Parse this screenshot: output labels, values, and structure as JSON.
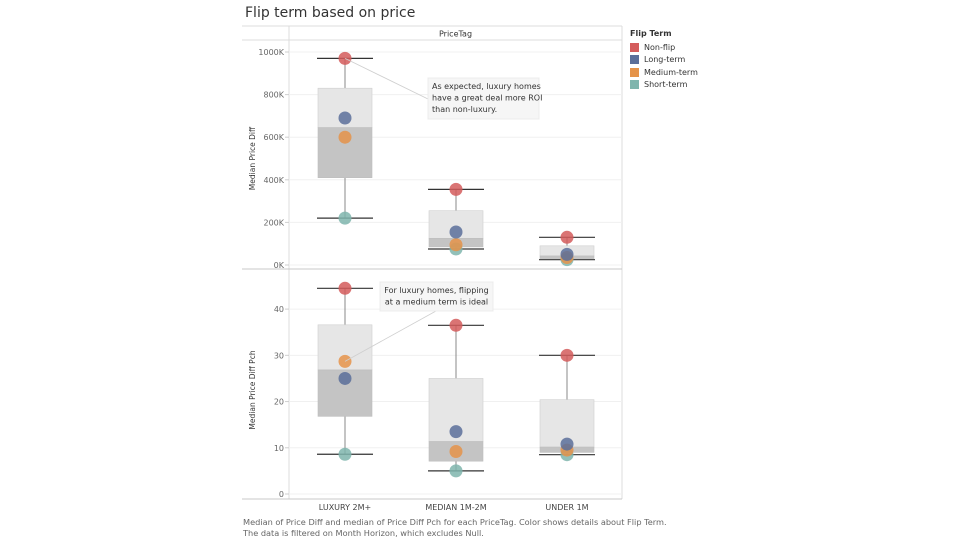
{
  "title": "Flip term based on price",
  "caption": [
    "Median of Price Diff and median of Price Diff Pch for each PriceTag.  Color shows details about Flip Term.",
    "The data is filtered on Month Horizon, which excludes Null."
  ],
  "legend": {
    "title": "Flip Term",
    "position": "right",
    "items": [
      {
        "label": "Non-flip",
        "color": "#d45c5c"
      },
      {
        "label": "Long-term",
        "color": "#5b6f9a"
      },
      {
        "label": "Medium-term",
        "color": "#e5934a"
      },
      {
        "label": "Short-term",
        "color": "#7fb5ad"
      }
    ]
  },
  "chart_data": {
    "type": "scatter",
    "subtype": "box-and-whisker with dots",
    "column_header": "PriceTag",
    "categories": [
      "LUXURY 2M+",
      "MEDIAN 1M-2M",
      "UNDER 1M"
    ],
    "panels": [
      {
        "ylabel": "Median Price Diff",
        "ylim": [
          0,
          1000000
        ],
        "ticks": [
          0,
          200000,
          400000,
          600000,
          800000,
          1000000
        ],
        "tick_labels": [
          "0K",
          "200K",
          "400K",
          "600K",
          "800K",
          "1000K"
        ],
        "series": [
          {
            "name": "Non-flip",
            "values": [
              970000,
              355000,
              130000
            ]
          },
          {
            "name": "Long-term",
            "values": [
              690000,
              155000,
              50000
            ]
          },
          {
            "name": "Medium-term",
            "values": [
              600000,
              95000,
              35000
            ]
          },
          {
            "name": "Short-term",
            "values": [
              220000,
              75000,
              25000
            ]
          }
        ],
        "annotation": {
          "text": [
            "As expected, luxury homes",
            "have a great deal more ROI",
            "than non-luxury."
          ],
          "category": 0,
          "series": "Non-flip"
        }
      },
      {
        "ylabel": "Median Price Diff Pch",
        "ylim": [
          0,
          45
        ],
        "ticks": [
          0,
          10,
          20,
          30,
          40
        ],
        "tick_labels": [
          "0",
          "10",
          "20",
          "30",
          "40"
        ],
        "series": [
          {
            "name": "Non-flip",
            "values": [
              44.5,
              36.5,
              30
            ]
          },
          {
            "name": "Long-term",
            "values": [
              25,
              13.5,
              10.8
            ]
          },
          {
            "name": "Medium-term",
            "values": [
              28.7,
              9.2,
              9.5
            ]
          },
          {
            "name": "Short-term",
            "values": [
              8.6,
              5,
              8.5
            ]
          }
        ],
        "annotation": {
          "text": [
            "For luxury homes, flipping",
            "at a medium term is ideal"
          ],
          "category": 0,
          "series": "Medium-term"
        }
      }
    ]
  }
}
